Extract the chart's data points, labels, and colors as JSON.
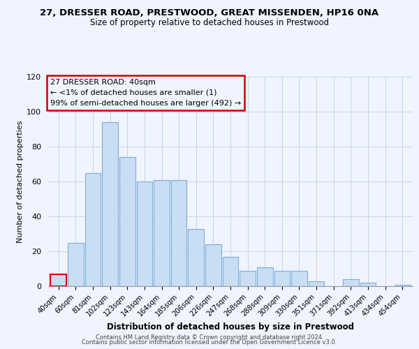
{
  "title_line1": "27, DRESSER ROAD, PRESTWOOD, GREAT MISSENDEN, HP16 0NA",
  "title_line2": "Size of property relative to detached houses in Prestwood",
  "xlabel": "Distribution of detached houses by size in Prestwood",
  "ylabel": "Number of detached properties",
  "bar_labels": [
    "40sqm",
    "60sqm",
    "81sqm",
    "102sqm",
    "123sqm",
    "143sqm",
    "164sqm",
    "185sqm",
    "206sqm",
    "226sqm",
    "247sqm",
    "268sqm",
    "288sqm",
    "309sqm",
    "330sqm",
    "351sqm",
    "371sqm",
    "392sqm",
    "413sqm",
    "434sqm",
    "454sqm"
  ],
  "bar_values": [
    7,
    25,
    65,
    94,
    74,
    60,
    61,
    61,
    33,
    24,
    17,
    9,
    11,
    9,
    9,
    3,
    0,
    4,
    2,
    0,
    1
  ],
  "bar_color": "#c9ddf5",
  "bar_edge_color": "#7bafd4",
  "highlight_bar_index": 0,
  "highlight_bar_edge_color": "#cc0000",
  "annotation_title": "27 DRESSER ROAD: 40sqm",
  "annotation_line2": "← <1% of detached houses are smaller (1)",
  "annotation_line3": "99% of semi-detached houses are larger (492) →",
  "annotation_box_edge_color": "#cc0000",
  "ylim": [
    0,
    120
  ],
  "yticks": [
    0,
    20,
    40,
    60,
    80,
    100,
    120
  ],
  "footer_line1": "Contains HM Land Registry data © Crown copyright and database right 2024.",
  "footer_line2": "Contains public sector information licensed under the Open Government Licence v3.0.",
  "background_color": "#f0f4ff",
  "grid_color": "#c8d4e8"
}
